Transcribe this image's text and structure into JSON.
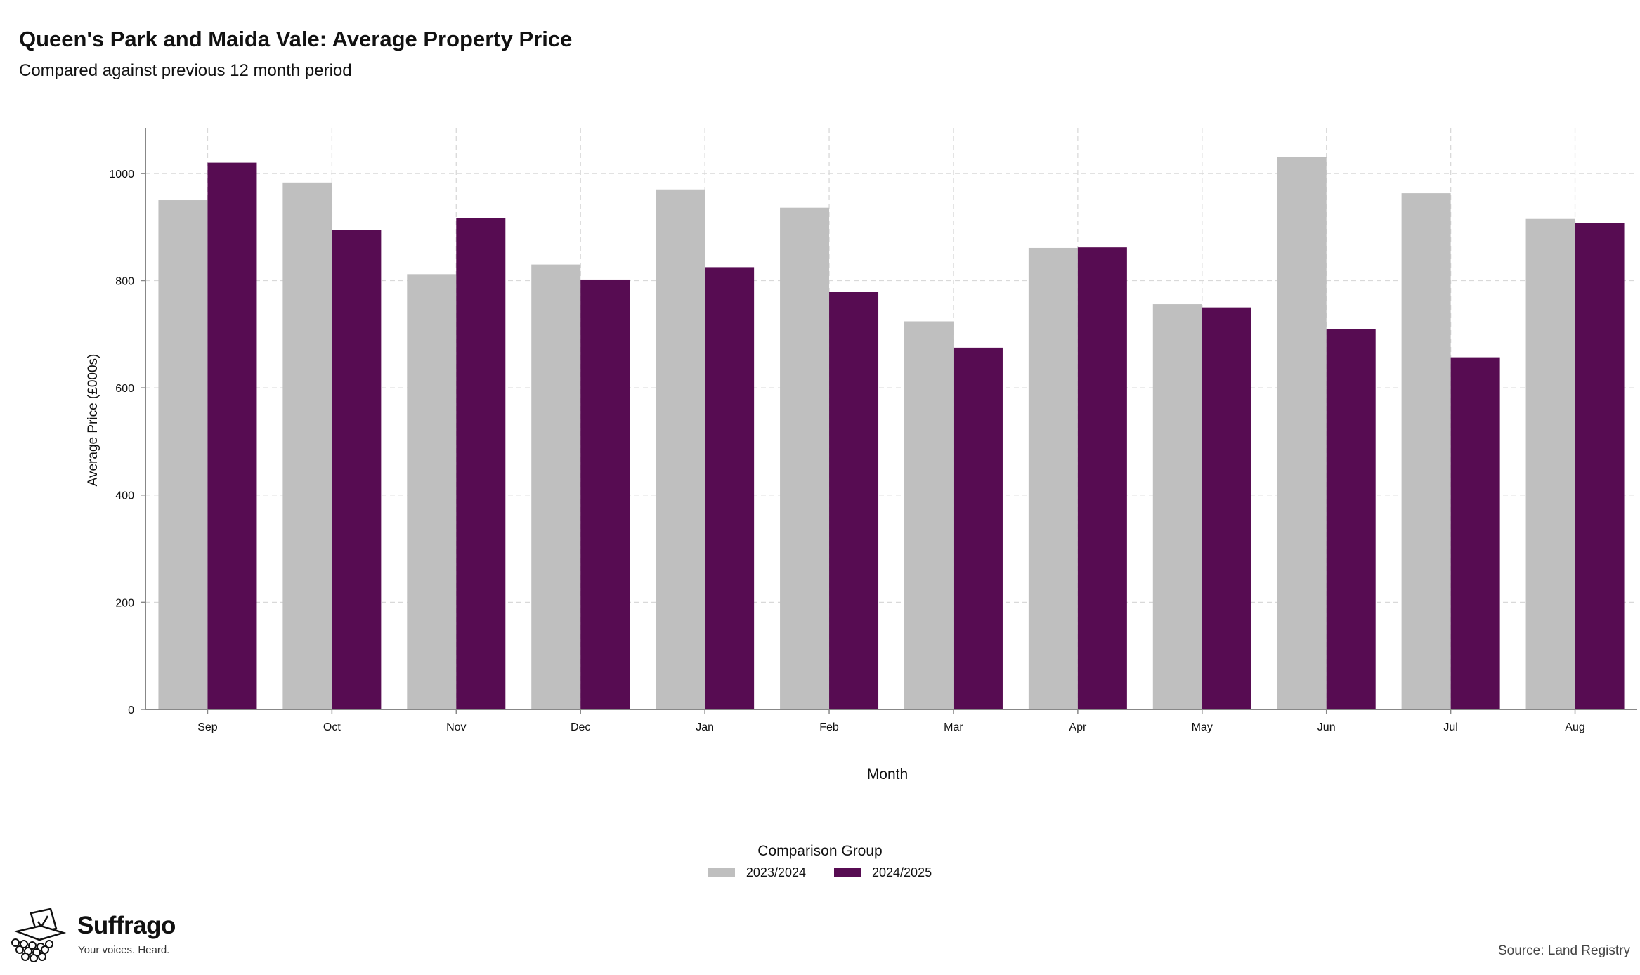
{
  "chart_data": {
    "type": "bar",
    "title": "Queen's Park and Maida Vale: Average Property Price",
    "subtitle": "Compared against previous 12 month period",
    "xlabel": "Month",
    "ylabel": "Average Price (£000s)",
    "categories": [
      "Sep",
      "Oct",
      "Nov",
      "Dec",
      "Jan",
      "Feb",
      "Mar",
      "Apr",
      "May",
      "Jun",
      "Jul",
      "Aug"
    ],
    "series": [
      {
        "name": "2023/2024",
        "color": "#bfbfbf",
        "values": [
          950,
          983,
          812,
          830,
          970,
          936,
          724,
          861,
          756,
          1031,
          963,
          915
        ]
      },
      {
        "name": "2024/2025",
        "color": "#570c52",
        "values": [
          1020,
          894,
          916,
          802,
          825,
          779,
          675,
          862,
          750,
          709,
          657,
          908
        ]
      }
    ],
    "ylim": [
      0,
      1085
    ],
    "yticks": [
      0,
      200,
      400,
      600,
      800,
      1000
    ],
    "grid": true,
    "legend": {
      "title": "Comparison Group",
      "position": "bottom"
    }
  },
  "branding": {
    "name": "Suffrago",
    "tagline": "Your voices. Heard."
  },
  "source": "Source: Land Registry"
}
